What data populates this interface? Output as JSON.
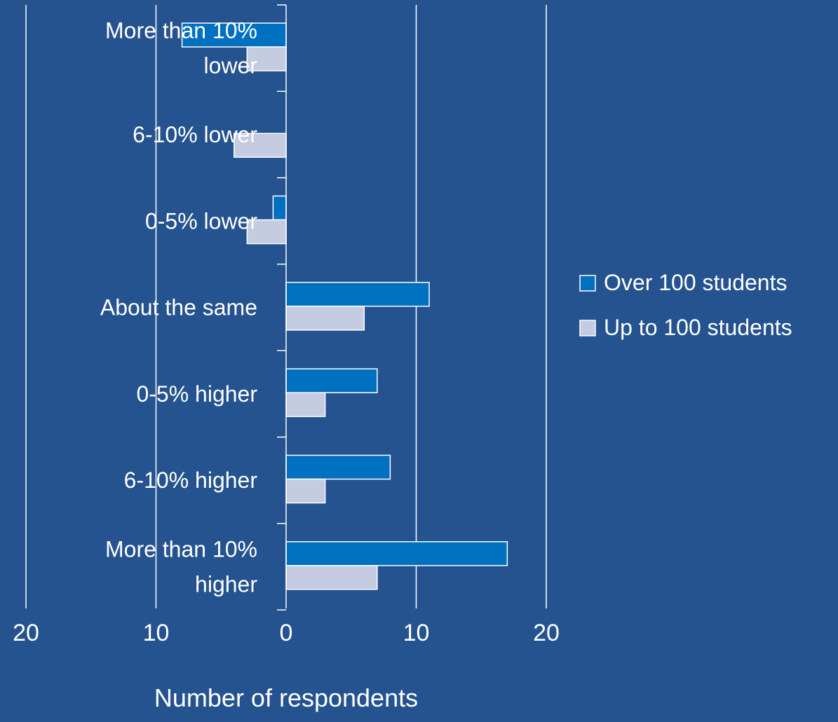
{
  "colors": {
    "background": "#24538f",
    "over_100": "#0070c0",
    "up_to_100": "#c5cbe0",
    "bar_border": "#ffffff",
    "gridline": "#ffffff",
    "text": "#ffffff"
  },
  "chart_data": {
    "type": "bar",
    "orientation": "horizontal",
    "layout": "butterfly",
    "title": "",
    "xlabel": "Number of respondents",
    "ylabel": "",
    "xlim": [
      -20,
      20
    ],
    "x_ticks": [
      -20,
      -10,
      0,
      10,
      20
    ],
    "x_tick_labels": [
      "20",
      "10",
      "0",
      "10",
      "20"
    ],
    "gridlines": true,
    "legend_position": "right",
    "categories": [
      "More than 10% lower",
      "6-10% lower",
      "0-5% lower",
      "About the same",
      "0-5% higher",
      "6-10% higher",
      "More than 10% higher"
    ],
    "category_label_lines": [
      [
        "More than 10%",
        "lower"
      ],
      [
        "6-10% lower"
      ],
      [
        "0-5% lower"
      ],
      [
        "About the same"
      ],
      [
        "0-5% higher"
      ],
      [
        "6-10% higher"
      ],
      [
        "More than 10%",
        "higher"
      ]
    ],
    "series": [
      {
        "name": "Over 100 students",
        "values": [
          -8,
          0,
          -1,
          11,
          7,
          8,
          17
        ]
      },
      {
        "name": "Up to 100 students",
        "values": [
          -3,
          -4,
          -3,
          6,
          3,
          3,
          7
        ]
      }
    ]
  }
}
